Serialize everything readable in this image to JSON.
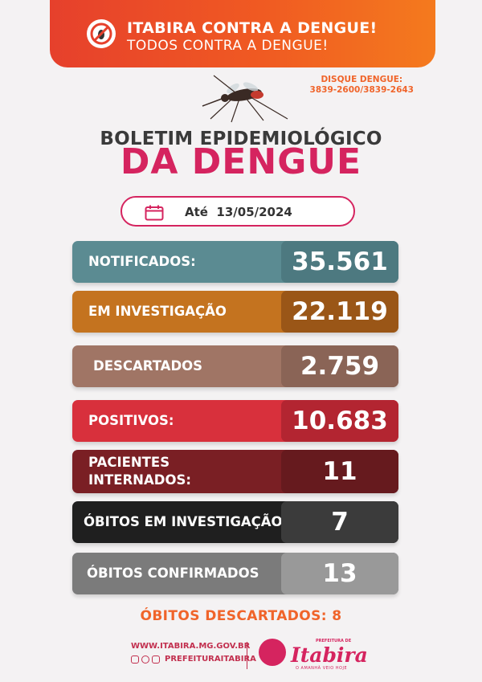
{
  "banner": {
    "line1": "ITABIRA CONTRA A DENGUE!",
    "line2": "TODOS CONTRA A DENGUE!"
  },
  "hotline": {
    "label": "DISQUE DENGUE:",
    "numbers": "3839-2600/3839-2643"
  },
  "title": {
    "line1": "BOLETIM EPIDEMIOLÓGICO",
    "line2": "DA DENGUE"
  },
  "date": {
    "prefix": "Até",
    "value": "13/05/2024"
  },
  "stats": [
    {
      "label": "NOTIFICADOS:",
      "value": "35.561"
    },
    {
      "label": "EM INVESTIGAÇÃO",
      "value": "22.119"
    },
    {
      "label": "DESCARTADOS",
      "value": "2.759"
    },
    {
      "label": "POSITIVOS:",
      "value": "10.683"
    },
    {
      "label_line1": "PACIENTES",
      "label_line2": "INTERNADOS:",
      "value": "11"
    },
    {
      "label": "ÓBITOS EM INVESTIGAÇÃO",
      "value": "7"
    },
    {
      "label": "ÓBITOS CONFIRMADOS",
      "value": "13"
    }
  ],
  "obitos_descartados": "ÓBITOS DESCARTADOS: 8",
  "footer": {
    "website": "WWW.ITABIRA.MG.GOV.BR",
    "social_handle": "PREFEITURAITABIRA",
    "logo_prefix": "PREFEITURA DE",
    "logo_brand": "Itabira",
    "logo_tagline": "O AMANHÃ VEIO HOJE"
  },
  "colors": {
    "accent_pink": "#d5245f",
    "accent_orange": "#f0642a"
  },
  "icons": [
    "no-mosquito-icon",
    "mosquito-icon",
    "calendar-icon",
    "facebook-icon",
    "instagram-icon",
    "youtube-icon"
  ]
}
